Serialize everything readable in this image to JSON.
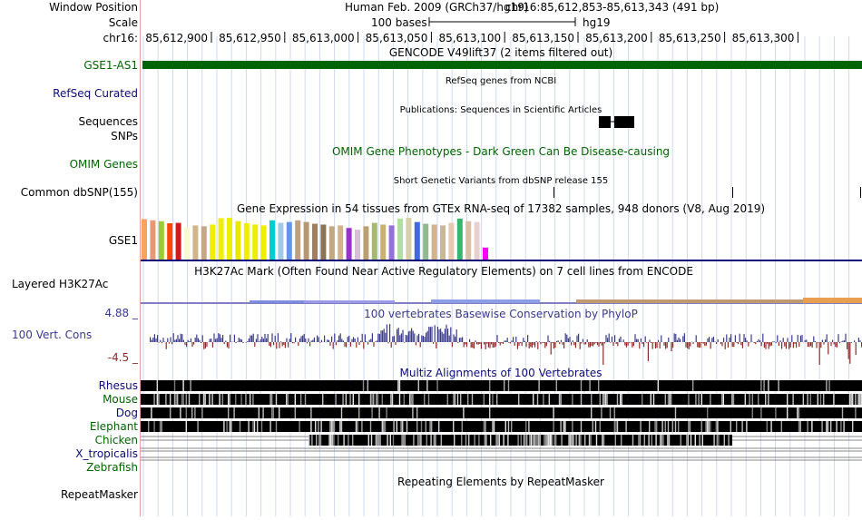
{
  "header": {
    "window_label": "Window Position",
    "scale_label": "Scale",
    "chrom_label": "chr16:",
    "assembly": "Human Feb. 2009 (GRCh37/hg19)",
    "position": "chr16:85,612,853-85,613,343 (491 bp)",
    "scale_text": "100 bases",
    "db": "hg19",
    "ticks": [
      "85,612,900",
      "85,612,950",
      "85,613,000",
      "85,613,050",
      "85,613,100",
      "85,613,150",
      "85,613,200",
      "85,613,250",
      "85,613,300"
    ]
  },
  "tracks": {
    "gencode": {
      "title": "GENCODE V49lift37 (2 items filtered out)",
      "item": "GSE1-AS1",
      "color": "#006400"
    },
    "refseq": {
      "title": "RefSeq genes from NCBI",
      "label": "RefSeq Curated",
      "color": "#0c0c78"
    },
    "publications": {
      "title": "Publications: Sequences in Scientific Articles",
      "label1": "Sequences",
      "label2": "SNPs"
    },
    "omim": {
      "title": "OMIM Gene Phenotypes - Dark Green Can Be Disease-causing",
      "label": "OMIM Genes",
      "color": "#006400"
    },
    "dbsnp": {
      "title": "Short Genetic Variants from dbSNP release 155",
      "label": "Common dbSNP(155)"
    },
    "gtex": {
      "title": "Gene Expression in 54 tissues from GTEx RNA-seq of 17382 samples, 948 donors (V8, Aug 2019)",
      "label": "GSE1"
    },
    "h3k27ac": {
      "title": "H3K27Ac Mark (Often Found Near Active Regulatory Elements) on 7 cell lines from ENCODE",
      "label": "Layered H3K27Ac"
    },
    "phylop": {
      "title": "100 vertebrates Basewise Conservation by PhyloP",
      "label": "100 Vert. Cons",
      "max": "4.88 _",
      "min": "-4.5 _",
      "color": "#3a3a8c",
      "neg_color": "#8c2a2a"
    },
    "multiz": {
      "title": "Multiz Alignments of 100 Vertebrates",
      "species": [
        {
          "name": "Rhesus",
          "color": "#0c0c78"
        },
        {
          "name": "Mouse",
          "color": "#006400"
        },
        {
          "name": "Dog",
          "color": "#0c0c78"
        },
        {
          "name": "Elephant",
          "color": "#006400"
        },
        {
          "name": "Chicken",
          "color": "#006400"
        },
        {
          "name": "X_tropicalis",
          "color": "#0c0c78"
        },
        {
          "name": "Zebrafish",
          "color": "#006400"
        }
      ]
    },
    "repeatmasker": {
      "title": "Repeating Elements by RepeatMasker",
      "label": "RepeatMasker"
    }
  },
  "gtex_colors": [
    "#f4a460",
    "#e9967a",
    "#9acd32",
    "#ff4500",
    "#cd1c1c",
    "#fafad2",
    "#d2b48c",
    "#c8a882",
    "#eeee00",
    "#eeee00",
    "#eeee00",
    "#e8e800",
    "#eeee00",
    "#eeee00",
    "#eeee00",
    "#00ced1",
    "#a0c8e8",
    "#6495ed",
    "#c0a080",
    "#b89870",
    "#a08060",
    "#8b7355",
    "#c0a880",
    "#d2b48c",
    "#9932cc",
    "#d8bfd8",
    "#b8a070",
    "#a8b870",
    "#c8b070",
    "#9370db",
    "#b0e0a0",
    "#d8d0a8",
    "#4169e1",
    "#8fbc8f",
    "#d2b48c",
    "#c8b898",
    "#e8c8b0",
    "#3cb371",
    "#d8c0a8",
    "#e8d0d0",
    "#ff00ff"
  ],
  "gtex_values": [
    0.95,
    0.92,
    0.9,
    0.85,
    0.86,
    0.75,
    0.8,
    0.78,
    0.82,
    0.97,
    0.98,
    0.9,
    0.85,
    0.82,
    0.8,
    0.92,
    0.86,
    0.88,
    0.92,
    0.88,
    0.84,
    0.82,
    0.78,
    0.8,
    0.74,
    0.7,
    0.78,
    0.86,
    0.82,
    0.8,
    0.96,
    0.98,
    0.88,
    0.84,
    0.82,
    0.8,
    0.86,
    0.96,
    0.9,
    0.88,
    0.28
  ]
}
